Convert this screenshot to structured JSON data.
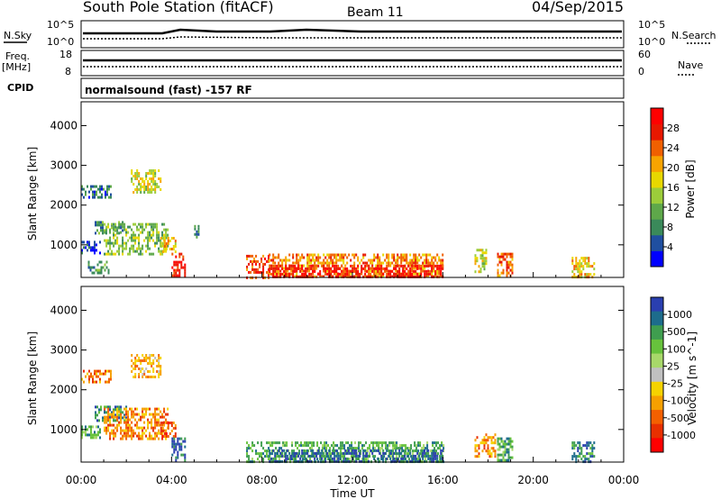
{
  "header": {
    "station": "South Pole Station (fitACF)",
    "beam": "Beam 11",
    "date": "04/Sep/2015"
  },
  "noise_panel": {
    "left_label": "N.Sky",
    "left_ticks": [
      "10^5",
      "10^0"
    ],
    "right_label": "N.Search",
    "right_ticks": [
      "10^5",
      "10^0"
    ]
  },
  "freq_panel": {
    "left_label_1": "Freq.",
    "left_label_2": "[MHz]",
    "left_ticks": [
      "18",
      "8"
    ],
    "right_label": "Nave",
    "right_ticks": [
      "60",
      "0"
    ]
  },
  "cpid_panel": {
    "label": "CPID",
    "value": "normalsound (fast) -157 RF"
  },
  "chart_data": [
    {
      "type": "heatmap",
      "name": "power-panel",
      "ylabel": "Slant Range [km]",
      "yticks": [
        1000,
        2000,
        3000,
        4000
      ],
      "ylim": [
        180,
        4600
      ],
      "xlim_hours": [
        0,
        24
      ],
      "colorbar": {
        "label": "Power [dB]",
        "ticks": [
          "4",
          "8",
          "12",
          "16",
          "20",
          "24",
          "28"
        ],
        "colors": [
          "#0000ff",
          "#1f4fa0",
          "#3a8a5a",
          "#5ea84a",
          "#9ccd3a",
          "#e8d800",
          "#f8a400",
          "#f06000",
          "#e81800",
          "#ff0000"
        ]
      },
      "regions": [
        {
          "t": [
            0.0,
            1.3
          ],
          "r": [
            2200,
            2500
          ],
          "c": 2
        },
        {
          "t": [
            0.0,
            0.8
          ],
          "r": [
            800,
            1100
          ],
          "c": 1
        },
        {
          "t": [
            0.6,
            1.8
          ],
          "r": [
            1300,
            1600
          ],
          "c": 3
        },
        {
          "t": [
            1.0,
            3.8
          ],
          "r": [
            800,
            1550
          ],
          "c": 4
        },
        {
          "t": [
            2.2,
            3.5
          ],
          "r": [
            2300,
            2900
          ],
          "c": 5
        },
        {
          "t": [
            3.5,
            4.2
          ],
          "r": [
            800,
            1200
          ],
          "c": 6
        },
        {
          "t": [
            0.3,
            1.2
          ],
          "r": [
            300,
            600
          ],
          "c": 3
        },
        {
          "t": [
            4.0,
            4.6
          ],
          "r": [
            200,
            800
          ],
          "c": 9
        },
        {
          "t": [
            5.0,
            5.2
          ],
          "r": [
            1200,
            1500
          ],
          "c": 3
        },
        {
          "t": [
            7.3,
            8.3
          ],
          "r": [
            200,
            750
          ],
          "c": 8
        },
        {
          "t": [
            8.3,
            16.0
          ],
          "r": [
            200,
            780
          ],
          "c": 7
        },
        {
          "t": [
            8.3,
            16.0
          ],
          "r": [
            200,
            500
          ],
          "c": 9
        },
        {
          "t": [
            17.4,
            17.9
          ],
          "r": [
            300,
            900
          ],
          "c": 5
        },
        {
          "t": [
            18.4,
            19.1
          ],
          "r": [
            200,
            800
          ],
          "c": 7
        },
        {
          "t": [
            21.7,
            22.7
          ],
          "r": [
            200,
            700
          ],
          "c": 6
        }
      ]
    },
    {
      "type": "heatmap",
      "name": "velocity-panel",
      "ylabel": "Slant Range [km]",
      "yticks": [
        1000,
        2000,
        3000,
        4000
      ],
      "ylim": [
        180,
        4600
      ],
      "xlim_hours": [
        0,
        24
      ],
      "colorbar": {
        "label": "Velocity [m s^-1]",
        "ticks": [
          "1000",
          "500",
          "100",
          "25",
          "-25",
          "-100",
          "-500",
          "-1000"
        ],
        "colors": [
          "#2a3fb0",
          "#1d6c8c",
          "#3f9e4f",
          "#67c23c",
          "#a8d86a",
          "#c0c0c0",
          "#f6d300",
          "#f6a000",
          "#f46000",
          "#e83000",
          "#ff0000"
        ]
      },
      "regions": [
        {
          "t": [
            0.0,
            1.3
          ],
          "r": [
            2200,
            2500
          ],
          "c": 8
        },
        {
          "t": [
            0.0,
            0.8
          ],
          "r": [
            800,
            1100
          ],
          "c": 3
        },
        {
          "t": [
            0.6,
            2.0
          ],
          "r": [
            1200,
            1600
          ],
          "c": 2
        },
        {
          "t": [
            1.0,
            3.8
          ],
          "r": [
            800,
            1550
          ],
          "c": 8
        },
        {
          "t": [
            2.2,
            3.5
          ],
          "r": [
            2300,
            2900
          ],
          "c": 7
        },
        {
          "t": [
            3.5,
            4.2
          ],
          "r": [
            800,
            1200
          ],
          "c": 9
        },
        {
          "t": [
            4.0,
            4.6
          ],
          "r": [
            200,
            800
          ],
          "c": 1
        },
        {
          "t": [
            7.3,
            16.0
          ],
          "r": [
            200,
            700
          ],
          "c": 3
        },
        {
          "t": [
            8.3,
            16.0
          ],
          "r": [
            200,
            500
          ],
          "c": 1
        },
        {
          "t": [
            17.4,
            18.3
          ],
          "r": [
            300,
            900
          ],
          "c": 8
        },
        {
          "t": [
            18.4,
            19.1
          ],
          "r": [
            200,
            800
          ],
          "c": 3
        },
        {
          "t": [
            21.7,
            22.7
          ],
          "r": [
            200,
            700
          ],
          "c": 2
        }
      ]
    }
  ],
  "time_axis": {
    "tick_labels": [
      "00:00",
      "04:00",
      "08:00",
      "12:00",
      "16:00",
      "20:00",
      "00:00"
    ],
    "label": "Time UT"
  }
}
